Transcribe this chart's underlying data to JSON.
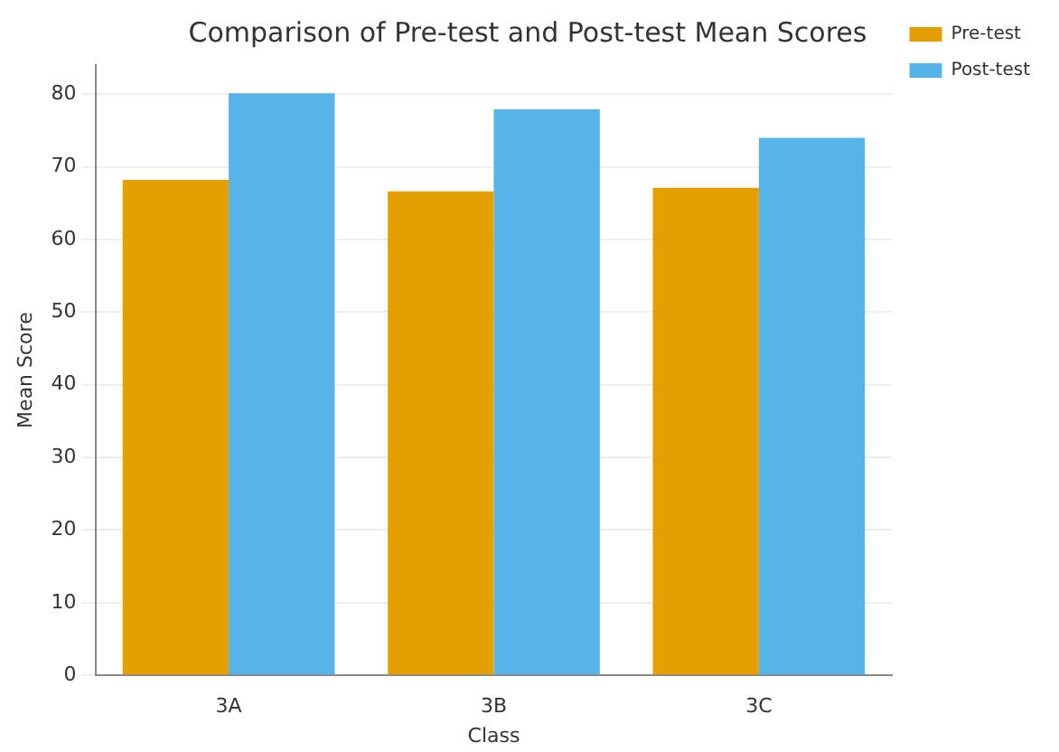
{
  "chart_data": {
    "type": "bar",
    "title": "Comparison of Pre-test and Post-test Mean Scores",
    "xlabel": "Class",
    "ylabel": "Mean Score",
    "categories": [
      "3A",
      "3B",
      "3C"
    ],
    "series": [
      {
        "name": "Pre-test",
        "color": "#e69f00",
        "values": [
          68.2,
          66.6,
          67.1
        ]
      },
      {
        "name": "Post-test",
        "color": "#56b4e9",
        "values": [
          80.1,
          77.9,
          74
        ]
      }
    ],
    "ylim": [
      0,
      84
    ],
    "yticks": [
      0,
      10,
      20,
      30,
      40,
      50,
      60,
      70,
      80
    ],
    "grid": "y",
    "legend": "top right"
  }
}
